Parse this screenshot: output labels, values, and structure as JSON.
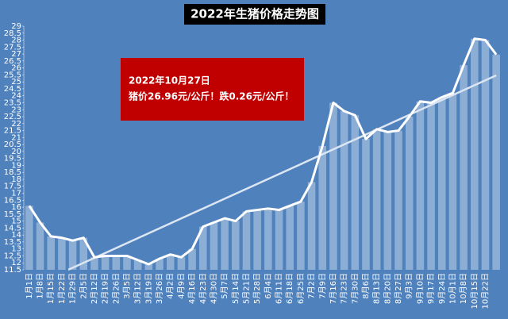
{
  "chart_data": {
    "type": "line",
    "title": "2022年生猪价格走势图",
    "annotation": [
      "2022年10月27日",
      "猪价26.96元/公斤！跌0.26元/公斤！"
    ],
    "categories": [
      "1月1日",
      "1月8日",
      "1月15日",
      "1月22日",
      "1月29日",
      "2月5日",
      "2月12日",
      "2月19日",
      "2月26日",
      "3月5日",
      "3月12日",
      "3月19日",
      "3月26日",
      "4月2日",
      "4月9日",
      "4月16日",
      "4月23日",
      "4月30日",
      "5月7日",
      "5月14日",
      "5月21日",
      "5月28日",
      "6月4日",
      "6月11日",
      "6月18日",
      "6月25日",
      "7月2日",
      "7月9日",
      "7月16日",
      "7月23日",
      "7月30日",
      "8月6日",
      "8月13日",
      "8月20日",
      "8月27日",
      "9月3日",
      "9月10日",
      "9月17日",
      "9月24日",
      "10月1日",
      "10月8日",
      "10月15日",
      "10月22日",
      null
    ],
    "values": [
      16.1,
      14.9,
      13.9,
      13.8,
      13.6,
      13.8,
      12.4,
      12.5,
      12.5,
      12.5,
      12.2,
      11.9,
      12.3,
      12.6,
      12.4,
      13.0,
      14.6,
      14.9,
      15.2,
      15.0,
      15.7,
      15.8,
      15.9,
      15.8,
      16.1,
      16.4,
      17.8,
      20.4,
      23.5,
      22.9,
      22.6,
      20.9,
      21.6,
      21.4,
      21.5,
      22.5,
      23.6,
      23.5,
      23.9,
      24.2,
      26.2,
      28.1,
      28.0,
      26.96
    ],
    "color": "#ffffff",
    "columns": true,
    "trendline": true,
    "ylim": [
      11.5,
      29
    ],
    "yticks": [
      11.5,
      12,
      12.5,
      13,
      13.5,
      14,
      14.5,
      15,
      15.5,
      16,
      16.5,
      17,
      17.5,
      18,
      18.5,
      19,
      19.5,
      20,
      20.5,
      21,
      21.5,
      22,
      22.5,
      23,
      23.5,
      24,
      24.5,
      25,
      25.5,
      26,
      26.5,
      27,
      27.5,
      28,
      28.5,
      29
    ]
  }
}
